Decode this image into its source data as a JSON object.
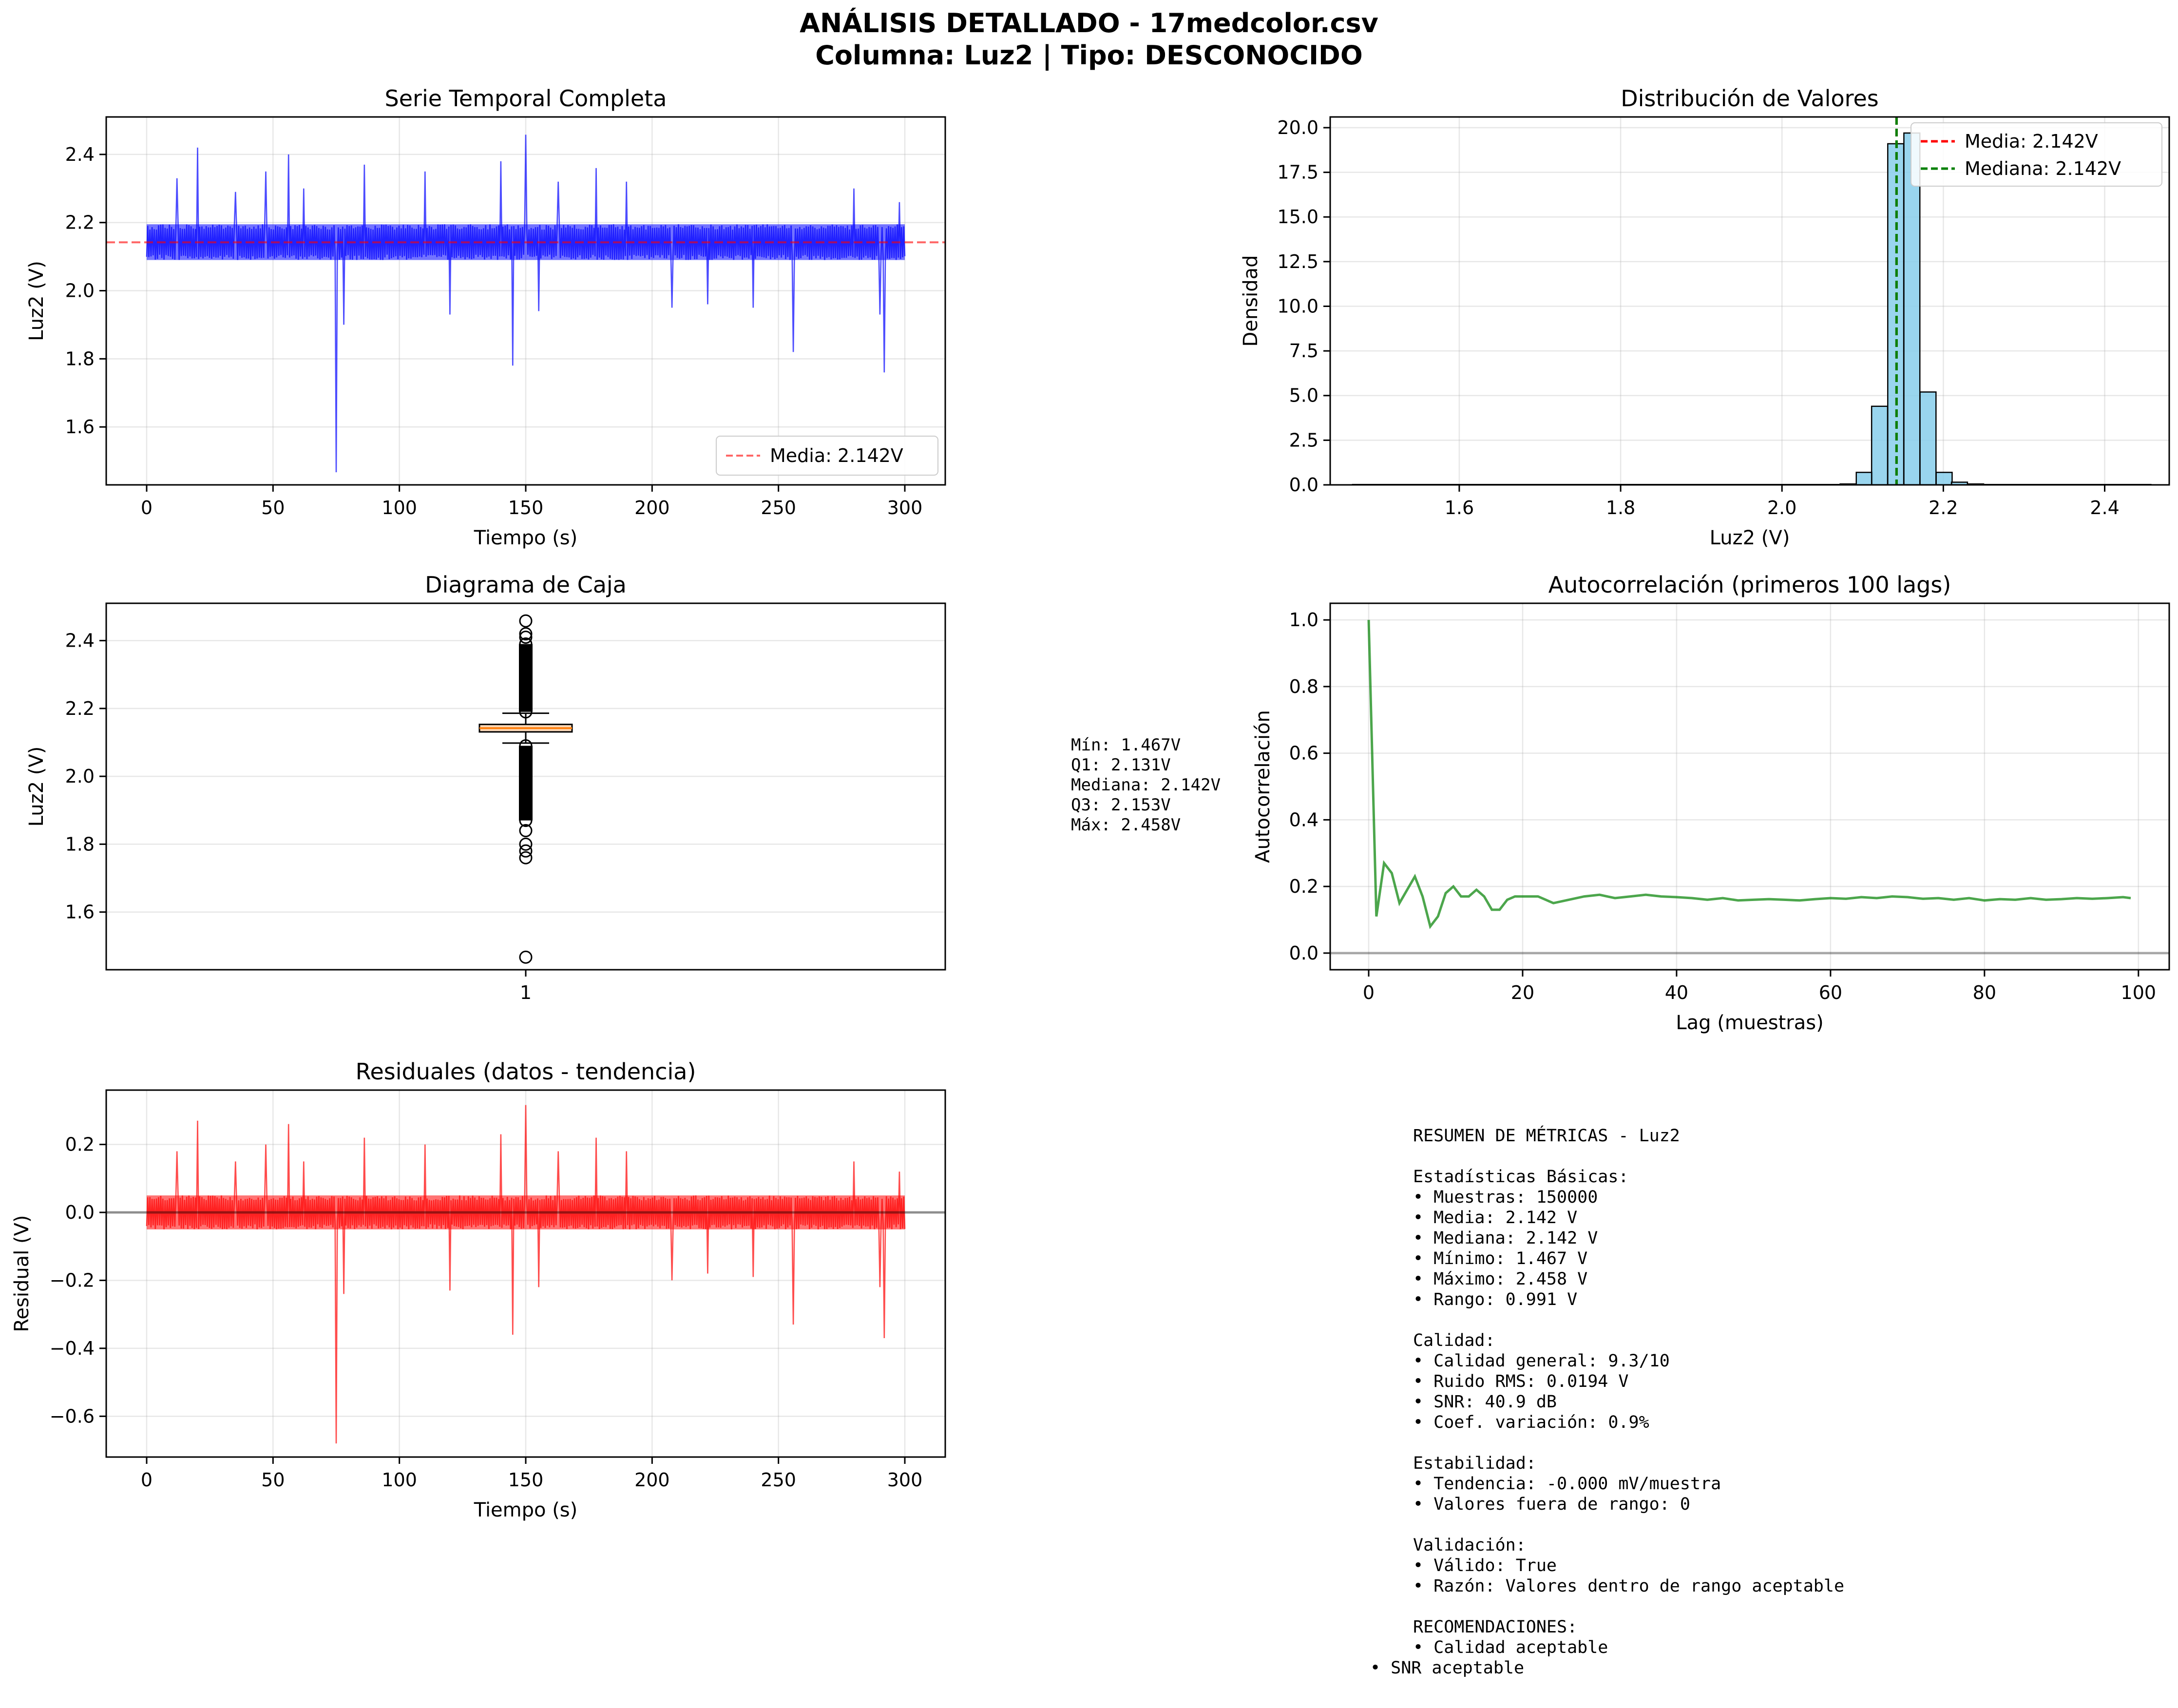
{
  "figure": {
    "title_line1": "ANÁLISIS DETALLADO - 17medcolor.csv",
    "title_line2": "Columna: Luz2 | Tipo: DESCONOCIDO"
  },
  "colors": {
    "series_blue": "#0000ff",
    "series_red": "#ff0000",
    "series_green": "#008000",
    "hist_fill": "#87ceeb",
    "box_median": "#ff7f0e",
    "box_fill": "#ffdab9"
  },
  "chart_data": [
    {
      "id": "timeseries",
      "type": "line",
      "title": "Serie Temporal Completa",
      "xlabel": "Tiempo (s)",
      "ylabel": "Luz2 (V)",
      "xlim": [
        -16,
        316
      ],
      "ylim": [
        1.43,
        2.51
      ],
      "xticks": [
        0,
        50,
        100,
        150,
        200,
        250,
        300
      ],
      "yticks": [
        1.6,
        1.8,
        2.0,
        2.2,
        2.4
      ],
      "ytick_labels": [
        "1.6",
        "1.8",
        "2.0",
        "2.2",
        "2.4"
      ],
      "baseline": 2.142,
      "band": [
        2.09,
        2.195
      ],
      "spikes": [
        [
          12,
          2.33
        ],
        [
          20,
          2.42
        ],
        [
          35,
          2.29
        ],
        [
          47,
          2.35
        ],
        [
          56,
          2.4
        ],
        [
          62,
          2.3
        ],
        [
          75,
          1.467
        ],
        [
          78,
          1.9
        ],
        [
          86,
          2.37
        ],
        [
          110,
          2.35
        ],
        [
          120,
          1.93
        ],
        [
          140,
          2.38
        ],
        [
          145,
          1.78
        ],
        [
          150,
          2.458
        ],
        [
          155,
          1.94
        ],
        [
          163,
          2.32
        ],
        [
          178,
          2.36
        ],
        [
          190,
          2.32
        ],
        [
          208,
          1.95
        ],
        [
          222,
          1.96
        ],
        [
          240,
          1.95
        ],
        [
          256,
          1.82
        ],
        [
          280,
          2.3
        ],
        [
          290,
          1.93
        ],
        [
          292,
          1.76
        ],
        [
          298,
          2.26
        ]
      ],
      "legend": [
        "Media: 2.142V"
      ],
      "legend_loc": "lower right"
    },
    {
      "id": "histogram",
      "type": "bar",
      "title": "Distribución de Valores",
      "xlabel": "Luz2 (V)",
      "ylabel": "Densidad",
      "xlim": [
        1.44,
        2.48
      ],
      "ylim": [
        0,
        20.6
      ],
      "xticks": [
        1.6,
        1.8,
        2.0,
        2.2,
        2.4
      ],
      "xtick_labels": [
        "1.6",
        "1.8",
        "2.0",
        "2.2",
        "2.4"
      ],
      "yticks": [
        0.0,
        2.5,
        5.0,
        7.5,
        10.0,
        12.5,
        15.0,
        17.5,
        20.0
      ],
      "ytick_labels": [
        "0.0",
        "2.5",
        "5.0",
        "7.5",
        "10.0",
        "12.5",
        "15.0",
        "17.5",
        "20.0"
      ],
      "bins": [
        [
          2.062,
          0.02
        ],
        [
          2.082,
          0.05
        ],
        [
          2.102,
          0.7
        ],
        [
          2.121,
          4.4
        ],
        [
          2.141,
          19.1
        ],
        [
          2.161,
          19.7
        ],
        [
          2.181,
          5.2
        ],
        [
          2.201,
          0.7
        ],
        [
          2.22,
          0.15
        ],
        [
          2.24,
          0.05
        ]
      ],
      "bin_width": 0.0198,
      "mean": 2.142,
      "median": 2.142,
      "legend": [
        "Media: 2.142V",
        "Mediana: 2.142V"
      ],
      "legend_loc": "upper right"
    },
    {
      "id": "boxplot",
      "type": "box",
      "title": "Diagrama de Caja",
      "ylabel": "Luz2 (V)",
      "xticks": [
        1
      ],
      "xtick_labels": [
        "1"
      ],
      "ylim": [
        1.43,
        2.51
      ],
      "yticks": [
        1.6,
        1.8,
        2.0,
        2.2,
        2.4
      ],
      "ytick_labels": [
        "1.6",
        "1.8",
        "2.0",
        "2.2",
        "2.4"
      ],
      "q1": 2.131,
      "median": 2.142,
      "q3": 2.153,
      "whisker_low": 2.098,
      "whisker_high": 2.186,
      "outliers": [
        1.467,
        1.76,
        1.78,
        1.8,
        1.84,
        1.87,
        1.89,
        1.91,
        1.93,
        1.95,
        1.97,
        1.99,
        2.01,
        2.03,
        2.05,
        2.07,
        2.09,
        2.19,
        2.21,
        2.23,
        2.25,
        2.27,
        2.29,
        2.31,
        2.33,
        2.35,
        2.37,
        2.39,
        2.41,
        2.42,
        2.458
      ],
      "summary_lines": [
        "Mín: 1.467V",
        "Q1: 2.131V",
        "Mediana: 2.142V",
        "Q3: 2.153V",
        "Máx: 2.458V"
      ]
    },
    {
      "id": "autocorr",
      "type": "line",
      "title": "Autocorrelación (primeros 100 lags)",
      "xlabel": "Lag (muestras)",
      "ylabel": "Autocorrelación",
      "xlim": [
        -5,
        104
      ],
      "ylim": [
        -0.05,
        1.05
      ],
      "xticks": [
        0,
        20,
        40,
        60,
        80,
        100
      ],
      "yticks": [
        0.0,
        0.2,
        0.4,
        0.6,
        0.8,
        1.0
      ],
      "ytick_labels": [
        "0.0",
        "0.2",
        "0.4",
        "0.6",
        "0.8",
        "1.0"
      ],
      "x": [
        0,
        1,
        2,
        3,
        4,
        5,
        6,
        7,
        8,
        9,
        10,
        11,
        12,
        13,
        14,
        15,
        16,
        17,
        18,
        19,
        20,
        22,
        24,
        26,
        28,
        30,
        32,
        34,
        36,
        38,
        40,
        42,
        44,
        46,
        48,
        50,
        52,
        54,
        56,
        58,
        60,
        62,
        64,
        66,
        68,
        70,
        72,
        74,
        76,
        78,
        80,
        82,
        84,
        86,
        88,
        90,
        92,
        94,
        96,
        98,
        99
      ],
      "y": [
        1.0,
        0.11,
        0.27,
        0.24,
        0.15,
        0.19,
        0.23,
        0.17,
        0.08,
        0.11,
        0.18,
        0.2,
        0.17,
        0.17,
        0.19,
        0.17,
        0.13,
        0.13,
        0.16,
        0.17,
        0.17,
        0.17,
        0.15,
        0.16,
        0.17,
        0.175,
        0.165,
        0.17,
        0.175,
        0.17,
        0.168,
        0.165,
        0.16,
        0.165,
        0.158,
        0.16,
        0.162,
        0.16,
        0.158,
        0.162,
        0.165,
        0.163,
        0.168,
        0.165,
        0.17,
        0.168,
        0.163,
        0.165,
        0.16,
        0.165,
        0.158,
        0.162,
        0.16,
        0.165,
        0.16,
        0.162,
        0.165,
        0.163,
        0.165,
        0.168,
        0.165
      ],
      "reference_line": 0
    },
    {
      "id": "residuals",
      "type": "line",
      "title": "Residuales (datos - tendencia)",
      "xlabel": "Tiempo (s)",
      "ylabel": "Residual (V)",
      "xlim": [
        -16,
        316
      ],
      "ylim": [
        -0.72,
        0.36
      ],
      "xticks": [
        0,
        50,
        100,
        150,
        200,
        250,
        300
      ],
      "yticks": [
        -0.6,
        -0.4,
        -0.2,
        0.0,
        0.2
      ],
      "ytick_labels": [
        "−0.6",
        "−0.4",
        "−0.2",
        "0.0",
        "0.2"
      ],
      "baseline": 0,
      "band": [
        -0.05,
        0.05
      ],
      "spikes": [
        [
          12,
          0.18
        ],
        [
          20,
          0.27
        ],
        [
          35,
          0.15
        ],
        [
          47,
          0.2
        ],
        [
          56,
          0.26
        ],
        [
          62,
          0.15
        ],
        [
          75,
          -0.68
        ],
        [
          78,
          -0.24
        ],
        [
          86,
          0.22
        ],
        [
          110,
          0.2
        ],
        [
          120,
          -0.23
        ],
        [
          140,
          0.23
        ],
        [
          145,
          -0.36
        ],
        [
          150,
          0.316
        ],
        [
          155,
          -0.22
        ],
        [
          163,
          0.18
        ],
        [
          178,
          0.22
        ],
        [
          190,
          0.18
        ],
        [
          208,
          -0.2
        ],
        [
          222,
          -0.18
        ],
        [
          240,
          -0.19
        ],
        [
          256,
          -0.33
        ],
        [
          280,
          0.15
        ],
        [
          290,
          -0.22
        ],
        [
          292,
          -0.37
        ],
        [
          298,
          0.12
        ]
      ],
      "reference_line": 0
    }
  ],
  "metrics_summary": [
    "RESUMEN DE MÉTRICAS - Luz2",
    "",
    "Estadísticas Básicas:",
    "• Muestras: 150000",
    "• Media: 2.142 V",
    "• Mediana: 2.142 V",
    "• Mínimo: 1.467 V",
    "• Máximo: 2.458 V",
    "• Rango: 0.991 V",
    "",
    "Calidad:",
    "• Calidad general: 9.3/10",
    "• Ruido RMS: 0.0194 V",
    "• SNR: 40.9 dB",
    "• Coef. variación: 0.9%",
    "",
    "Estabilidad:",
    "• Tendencia: -0.000 mV/muestra",
    "• Valores fuera de rango: 0",
    "",
    "Validación:",
    "• Válido: True",
    "• Razón: Valores dentro de rango aceptable",
    "",
    "RECOMENDACIONES:",
    "• Calidad aceptable"
  ],
  "metrics_summary_last": "• SNR aceptable"
}
